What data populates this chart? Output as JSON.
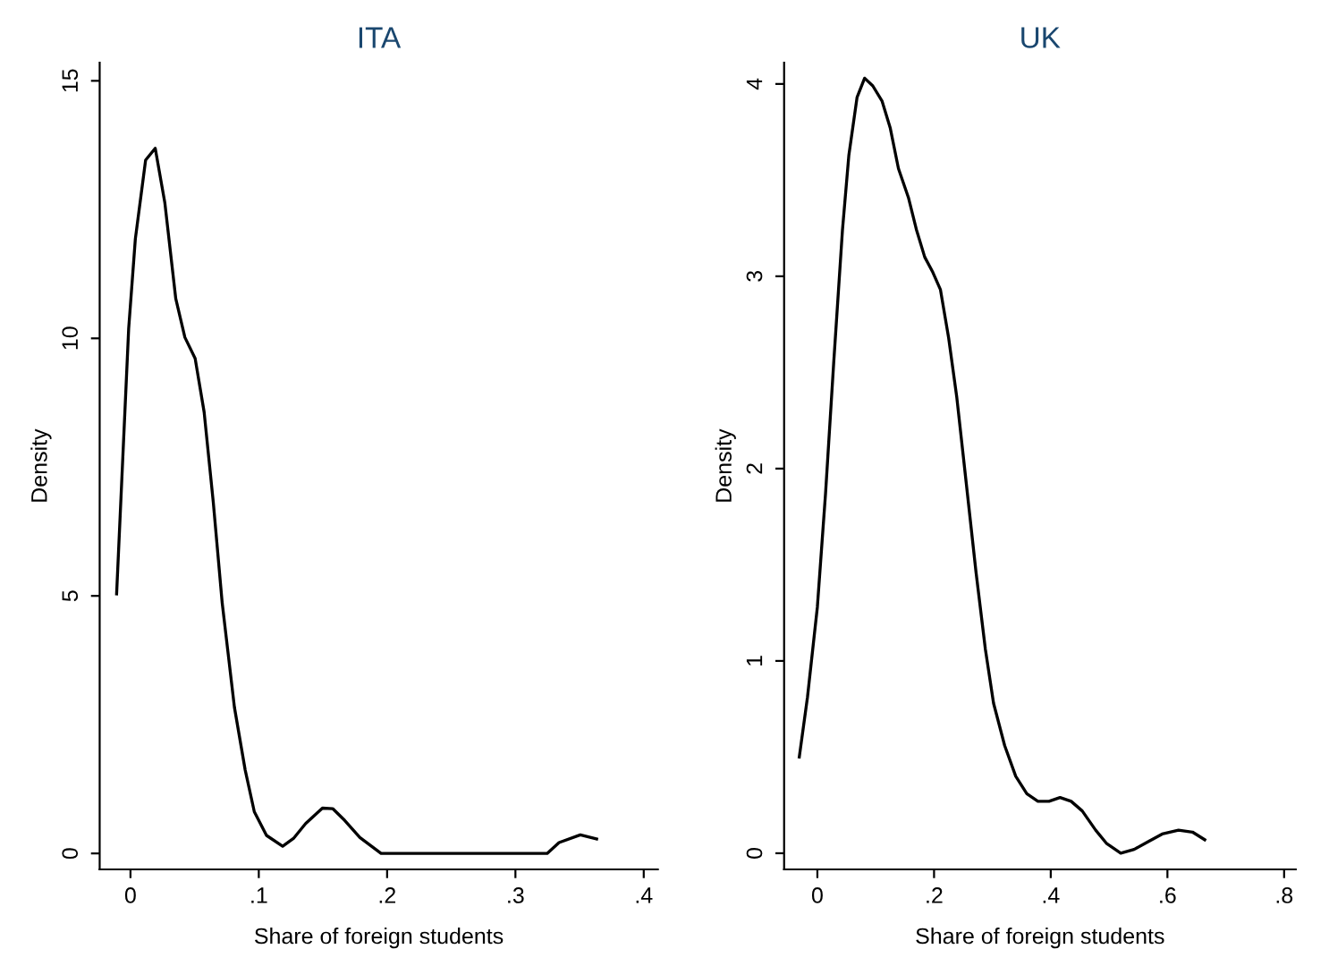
{
  "chart_data": [
    {
      "type": "line",
      "title": "ITA",
      "xlabel": "Share of foreign students",
      "ylabel": "Density",
      "xlim": [
        -0.024,
        0.411
      ],
      "xticks": [
        {
          "value": 0,
          "label": "0"
        },
        {
          "value": 0.1,
          "label": ".1"
        },
        {
          "value": 0.2,
          "label": ".2"
        },
        {
          "value": 0.3,
          "label": ".3"
        },
        {
          "value": 0.4,
          "label": ".4"
        }
      ],
      "ylim": [
        -0.31,
        15.35
      ],
      "yticks": [
        0,
        5,
        10,
        15
      ],
      "grid": false,
      "legend": false,
      "marker": "none",
      "line_style": "solid",
      "series": [
        {
          "color": "#000000",
          "x": [
            -0.0108,
            -0.0014,
            0.0038,
            0.0118,
            0.0193,
            0.0268,
            0.0353,
            0.0424,
            0.0504,
            0.0574,
            0.0645,
            0.0715,
            0.081,
            0.0894,
            0.0965,
            0.106,
            0.1186,
            0.127,
            0.1365,
            0.1496,
            0.1576,
            0.167,
            0.1788,
            0.1953,
            0.3247,
            0.334,
            0.3506,
            0.3633
          ],
          "values": [
            5.04,
            10.19,
            11.93,
            13.46,
            13.69,
            12.63,
            10.77,
            10.02,
            9.61,
            8.57,
            6.83,
            4.86,
            2.84,
            1.62,
            0.81,
            0.35,
            0.14,
            0.29,
            0.58,
            0.88,
            0.87,
            0.64,
            0.31,
            0,
            0,
            0.21,
            0.36,
            0.28
          ]
        }
      ]
    },
    {
      "type": "line",
      "title": "UK",
      "xlabel": "Share of foreign students",
      "ylabel": "Density",
      "xlim": [
        -0.057,
        0.82
      ],
      "xticks": [
        {
          "value": 0,
          "label": "0"
        },
        {
          "value": 0.2,
          "label": ".2"
        },
        {
          "value": 0.4,
          "label": ".4"
        },
        {
          "value": 0.6,
          "label": ".6"
        },
        {
          "value": 0.8,
          "label": ".8"
        }
      ],
      "ylim": [
        -0.084,
        4.11
      ],
      "yticks": [
        0,
        1,
        2,
        3,
        4
      ],
      "grid": false,
      "legend": false,
      "marker": "none",
      "line_style": "solid",
      "series": [
        {
          "color": "#000000",
          "x": [
            -0.031,
            -0.017,
            0,
            0.014,
            0.028,
            0.043,
            0.054,
            0.068,
            0.081,
            0.095,
            0.111,
            0.125,
            0.139,
            0.156,
            0.17,
            0.184,
            0.198,
            0.211,
            0.225,
            0.239,
            0.255,
            0.272,
            0.288,
            0.302,
            0.321,
            0.34,
            0.359,
            0.378,
            0.397,
            0.416,
            0.435,
            0.454,
            0.477,
            0.496,
            0.52,
            0.543,
            0.567,
            0.591,
            0.619,
            0.643,
            0.664
          ],
          "values": [
            0.5,
            0.81,
            1.28,
            1.87,
            2.55,
            3.24,
            3.63,
            3.93,
            4.03,
            3.99,
            3.91,
            3.77,
            3.56,
            3.41,
            3.24,
            3.1,
            3.02,
            2.93,
            2.68,
            2.37,
            1.93,
            1.46,
            1.06,
            0.78,
            0.56,
            0.4,
            0.31,
            0.27,
            0.27,
            0.29,
            0.27,
            0.22,
            0.12,
            0.05,
            0,
            0.02,
            0.06,
            0.1,
            0.12,
            0.11,
            0.07
          ]
        }
      ]
    }
  ]
}
